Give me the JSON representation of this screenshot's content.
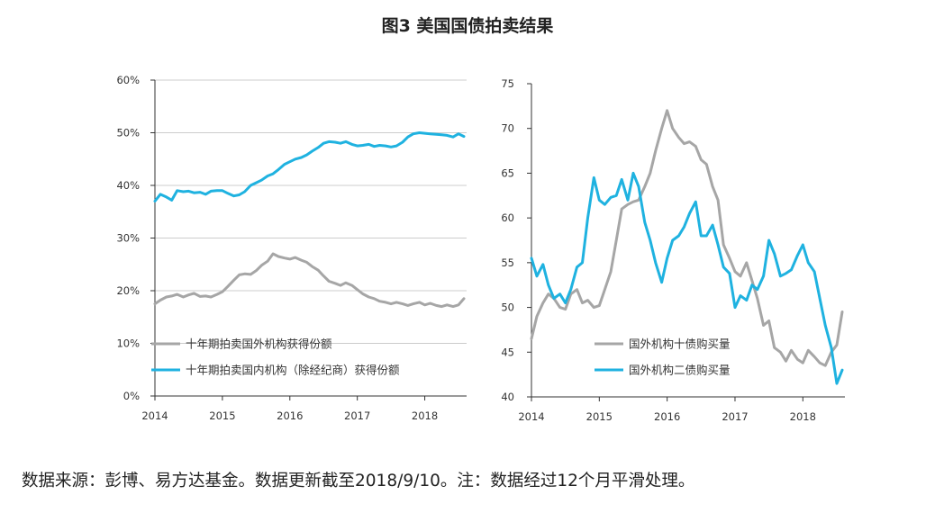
{
  "figure_title": "图3 美国国债拍卖结果",
  "source_note": "数据来源：彭博、易方达基金。数据更新截至2018/9/10。注：数据经过12个月平滑处理。",
  "colors": {
    "grey_series": "#a6a6a6",
    "blue_series": "#1fb2e0",
    "axis": "#333333",
    "grid": "#cccccc"
  },
  "chart_data": [
    {
      "type": "line",
      "xlabel": "",
      "ylabel": "",
      "x_ticks": [
        "2014",
        "2015",
        "2016",
        "2017",
        "2018"
      ],
      "xlim": [
        2014.0,
        2018.62
      ],
      "y_ticks": [
        "0%",
        "10%",
        "20%",
        "30%",
        "40%",
        "50%",
        "60%"
      ],
      "ylim": [
        0,
        60
      ],
      "grid": true,
      "legend_position": "bottom-left",
      "series": [
        {
          "name": "十年期拍卖国外机构获得份额",
          "color": "#a6a6a6",
          "x": [
            2014.0,
            2014.08,
            2014.17,
            2014.25,
            2014.33,
            2014.42,
            2014.5,
            2014.58,
            2014.67,
            2014.75,
            2014.83,
            2014.92,
            2015.0,
            2015.08,
            2015.17,
            2015.25,
            2015.33,
            2015.42,
            2015.5,
            2015.58,
            2015.67,
            2015.75,
            2015.83,
            2015.92,
            2016.0,
            2016.08,
            2016.17,
            2016.25,
            2016.33,
            2016.42,
            2016.5,
            2016.58,
            2016.67,
            2016.75,
            2016.83,
            2016.92,
            2017.0,
            2017.08,
            2017.17,
            2017.25,
            2017.33,
            2017.42,
            2017.5,
            2017.58,
            2017.67,
            2017.75,
            2017.83,
            2017.92,
            2018.0,
            2018.08,
            2018.17,
            2018.25,
            2018.33,
            2018.42,
            2018.5,
            2018.58
          ],
          "values": [
            17.5,
            18.2,
            18.8,
            19.0,
            19.3,
            18.8,
            19.2,
            19.5,
            18.9,
            19.0,
            18.8,
            19.3,
            19.8,
            20.8,
            22.0,
            23.0,
            23.2,
            23.1,
            23.8,
            24.8,
            25.6,
            27.0,
            26.5,
            26.2,
            26.0,
            26.3,
            25.8,
            25.4,
            24.6,
            23.9,
            22.8,
            21.8,
            21.4,
            21.0,
            21.5,
            21.0,
            20.2,
            19.4,
            18.8,
            18.5,
            18.0,
            17.8,
            17.5,
            17.8,
            17.5,
            17.2,
            17.5,
            17.8,
            17.3,
            17.6,
            17.2,
            17.0,
            17.3,
            17.0,
            17.3,
            18.5
          ]
        },
        {
          "name": "十年期拍卖国内机构（除经纪商）获得份额",
          "color": "#1fb2e0",
          "x": [
            2014.0,
            2014.08,
            2014.17,
            2014.25,
            2014.33,
            2014.42,
            2014.5,
            2014.58,
            2014.67,
            2014.75,
            2014.83,
            2014.92,
            2015.0,
            2015.08,
            2015.17,
            2015.25,
            2015.33,
            2015.42,
            2015.5,
            2015.58,
            2015.67,
            2015.75,
            2015.83,
            2015.92,
            2016.0,
            2016.08,
            2016.17,
            2016.25,
            2016.33,
            2016.42,
            2016.5,
            2016.58,
            2016.67,
            2016.75,
            2016.83,
            2016.92,
            2017.0,
            2017.08,
            2017.17,
            2017.25,
            2017.33,
            2017.42,
            2017.5,
            2017.58,
            2017.67,
            2017.75,
            2017.83,
            2017.92,
            2018.0,
            2018.08,
            2018.17,
            2018.25,
            2018.33,
            2018.42,
            2018.5,
            2018.58
          ],
          "values": [
            37.0,
            38.3,
            37.8,
            37.2,
            39.0,
            38.8,
            38.9,
            38.6,
            38.7,
            38.3,
            38.9,
            39.0,
            39.0,
            38.5,
            38.0,
            38.2,
            38.8,
            40.0,
            40.5,
            41.0,
            41.8,
            42.2,
            43.0,
            44.0,
            44.5,
            45.0,
            45.3,
            45.8,
            46.5,
            47.2,
            48.0,
            48.3,
            48.2,
            48.0,
            48.3,
            47.8,
            47.5,
            47.6,
            47.8,
            47.4,
            47.6,
            47.5,
            47.3,
            47.5,
            48.2,
            49.2,
            49.8,
            50.0,
            49.9,
            49.8,
            49.7,
            49.6,
            49.5,
            49.2,
            49.8,
            49.3
          ]
        }
      ]
    },
    {
      "type": "line",
      "xlabel": "",
      "ylabel": "",
      "x_ticks": [
        "2014",
        "2015",
        "2016",
        "2017",
        "2018"
      ],
      "xlim": [
        2014.0,
        2018.62
      ],
      "y_ticks": [
        "40",
        "45",
        "50",
        "55",
        "60",
        "65",
        "70",
        "75"
      ],
      "ylim": [
        40,
        75
      ],
      "grid": false,
      "legend_position": "bottom-left",
      "series": [
        {
          "name": "国外机构十债购买量",
          "color": "#a6a6a6",
          "x": [
            2014.0,
            2014.08,
            2014.17,
            2014.25,
            2014.33,
            2014.42,
            2014.5,
            2014.58,
            2014.67,
            2014.75,
            2014.83,
            2014.92,
            2015.0,
            2015.08,
            2015.17,
            2015.25,
            2015.33,
            2015.42,
            2015.5,
            2015.58,
            2015.67,
            2015.75,
            2015.83,
            2015.92,
            2016.0,
            2016.08,
            2016.17,
            2016.25,
            2016.33,
            2016.42,
            2016.5,
            2016.58,
            2016.67,
            2016.75,
            2016.83,
            2016.92,
            2017.0,
            2017.08,
            2017.17,
            2017.25,
            2017.33,
            2017.42,
            2017.5,
            2017.58,
            2017.67,
            2017.75,
            2017.83,
            2017.92,
            2018.0,
            2018.08,
            2018.17,
            2018.25,
            2018.33,
            2018.42,
            2018.5,
            2018.58
          ],
          "values": [
            46.5,
            49.0,
            50.5,
            51.5,
            51.0,
            50.0,
            49.8,
            51.5,
            52.0,
            50.5,
            50.8,
            50.0,
            50.2,
            52.0,
            54.0,
            57.5,
            61.0,
            61.5,
            61.8,
            62.0,
            63.5,
            65.0,
            67.5,
            70.0,
            72.0,
            70.0,
            69.0,
            68.3,
            68.5,
            68.0,
            66.5,
            66.0,
            63.5,
            62.0,
            57.0,
            55.5,
            54.0,
            53.5,
            55.0,
            53.0,
            51.0,
            48.0,
            48.5,
            45.5,
            45.0,
            44.0,
            45.2,
            44.2,
            43.8,
            45.2,
            44.5,
            43.8,
            43.5,
            45.0,
            45.8,
            49.5
          ]
        },
        {
          "name": "国外机构二债购买量",
          "color": "#1fb2e0",
          "x": [
            2014.0,
            2014.08,
            2014.17,
            2014.25,
            2014.33,
            2014.42,
            2014.5,
            2014.58,
            2014.67,
            2014.75,
            2014.83,
            2014.92,
            2015.0,
            2015.08,
            2015.17,
            2015.25,
            2015.33,
            2015.42,
            2015.5,
            2015.58,
            2015.67,
            2015.75,
            2015.83,
            2015.92,
            2016.0,
            2016.08,
            2016.17,
            2016.25,
            2016.33,
            2016.42,
            2016.5,
            2016.58,
            2016.67,
            2016.75,
            2016.83,
            2016.92,
            2017.0,
            2017.08,
            2017.17,
            2017.25,
            2017.33,
            2017.42,
            2017.5,
            2017.58,
            2017.67,
            2017.75,
            2017.83,
            2017.92,
            2018.0,
            2018.08,
            2018.17,
            2018.25,
            2018.33,
            2018.42,
            2018.5,
            2018.58
          ],
          "values": [
            55.5,
            53.5,
            54.8,
            52.5,
            51.0,
            51.5,
            50.5,
            52.0,
            54.5,
            55.0,
            60.0,
            64.5,
            62.0,
            61.5,
            62.3,
            62.5,
            64.3,
            62.0,
            65.0,
            63.5,
            59.5,
            57.5,
            55.0,
            52.8,
            55.5,
            57.5,
            58.0,
            59.0,
            60.5,
            61.8,
            58.0,
            58.0,
            59.2,
            57.0,
            54.5,
            53.8,
            50.0,
            51.3,
            50.8,
            52.5,
            52.0,
            53.5,
            57.5,
            56.0,
            53.5,
            53.8,
            54.2,
            55.8,
            57.0,
            55.0,
            54.0,
            51.0,
            48.0,
            45.5,
            41.5,
            43.0
          ]
        }
      ]
    }
  ]
}
